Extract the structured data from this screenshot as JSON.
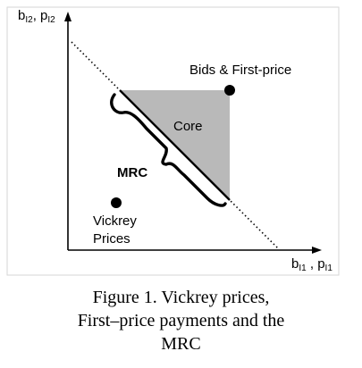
{
  "axes": {
    "y_label_main": "b",
    "y_label_sub": "I2",
    "y_label_sep": ", ",
    "y_label2_main": "p",
    "y_label2_sub": "I2",
    "x_label_main": "b",
    "x_label_sub": "I1",
    "x_label_sep": " , ",
    "x_label2_main": "p",
    "x_label2_sub": "I1"
  },
  "labels": {
    "bids": "Bids & First-price",
    "core": "Core",
    "mrc": "MRC",
    "vickrey_line1": "Vickrey",
    "vickrey_line2": "Prices"
  },
  "colors": {
    "core_fill": "#b9b9b9",
    "ink": "#000000"
  },
  "caption": {
    "line1": "Figure 1. Vickrey prices,",
    "line2": "First–price payments and the",
    "line3": "MRC"
  }
}
